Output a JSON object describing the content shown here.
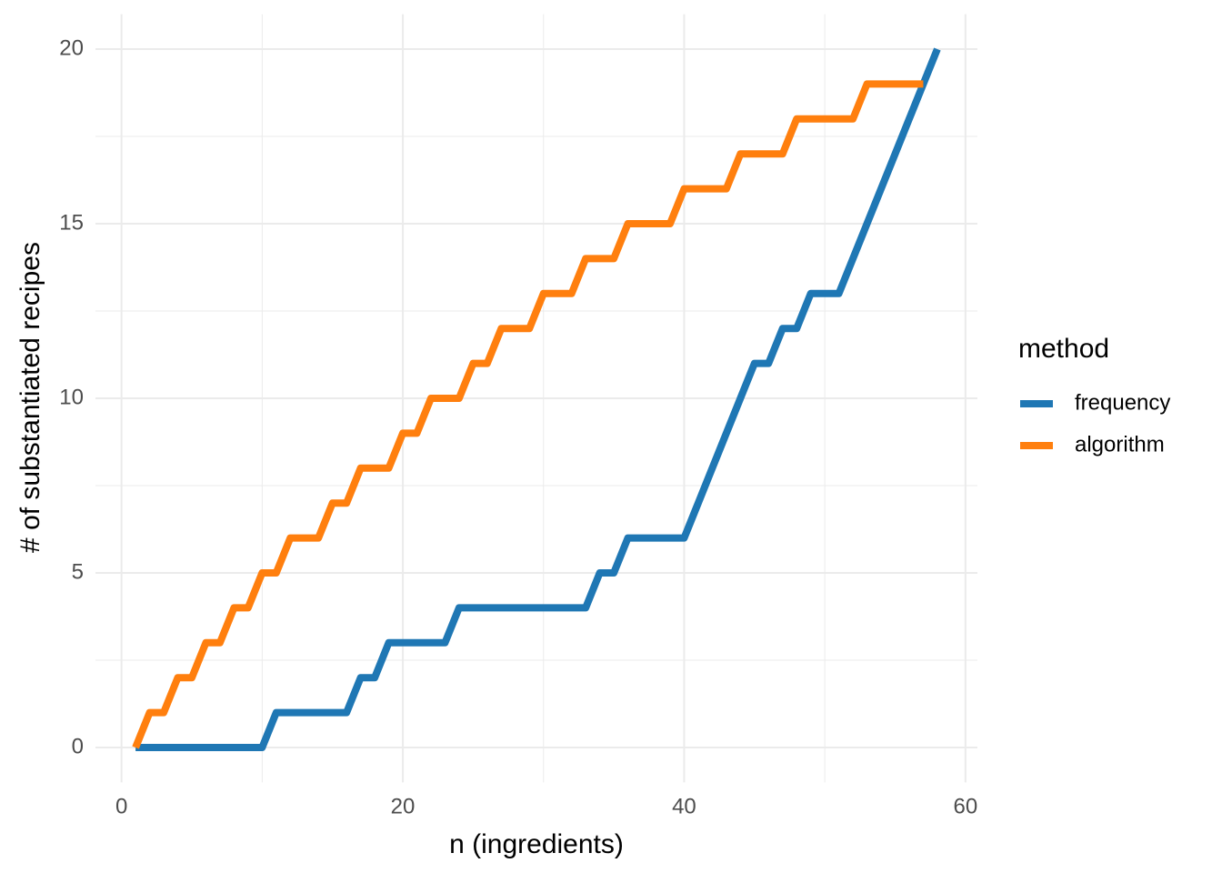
{
  "chart_data": {
    "type": "line",
    "x_label": "n (ingredients)",
    "y_label": "# of substantiated recipes",
    "legend_title": "method",
    "legend_position": "right",
    "grid": true,
    "xlim": [
      -1.85,
      60.85
    ],
    "ylim": [
      -1,
      21
    ],
    "xticks": [
      0,
      20,
      40,
      60
    ],
    "yticks": [
      0,
      5,
      10,
      15,
      20
    ],
    "x_minor_grid": [
      10,
      30,
      50
    ],
    "y_minor_grid": [
      2.5,
      7.5,
      12.5,
      17.5
    ],
    "series": [
      {
        "name": "frequency",
        "color": "#1f77b4",
        "x": [
          1,
          2,
          3,
          4,
          5,
          6,
          7,
          8,
          9,
          10,
          11,
          12,
          13,
          14,
          15,
          16,
          17,
          18,
          19,
          20,
          21,
          22,
          23,
          24,
          25,
          26,
          27,
          28,
          29,
          30,
          31,
          32,
          33,
          34,
          35,
          36,
          37,
          38,
          39,
          40,
          41,
          42,
          43,
          44,
          45,
          46,
          47,
          48,
          49,
          50,
          51,
          52,
          53,
          54,
          55,
          56,
          57,
          58
        ],
        "values": [
          0,
          0,
          0,
          0,
          0,
          0,
          0,
          0,
          0,
          0,
          1,
          1,
          1,
          1,
          1,
          1,
          2,
          2,
          3,
          3,
          3,
          3,
          3,
          4,
          4,
          4,
          4,
          4,
          4,
          4,
          4,
          4,
          4,
          5,
          5,
          6,
          6,
          6,
          6,
          6,
          7,
          8,
          9,
          10,
          11,
          11,
          12,
          12,
          13,
          13,
          13,
          14,
          15,
          16,
          17,
          18,
          19,
          20
        ]
      },
      {
        "name": "algorithm",
        "color": "#ff7f0e",
        "x": [
          1,
          2,
          3,
          4,
          5,
          6,
          7,
          8,
          9,
          10,
          11,
          12,
          13,
          14,
          15,
          16,
          17,
          18,
          19,
          20,
          21,
          22,
          23,
          24,
          25,
          26,
          27,
          28,
          29,
          30,
          31,
          32,
          33,
          34,
          35,
          36,
          37,
          38,
          39,
          40,
          41,
          42,
          43,
          44,
          45,
          46,
          47,
          48,
          49,
          50,
          51,
          52,
          53,
          54,
          55,
          56,
          57
        ],
        "values": [
          0,
          1,
          1,
          2,
          2,
          3,
          3,
          4,
          4,
          5,
          5,
          6,
          6,
          6,
          7,
          7,
          8,
          8,
          8,
          9,
          9,
          10,
          10,
          10,
          11,
          11,
          12,
          12,
          12,
          13,
          13,
          13,
          14,
          14,
          14,
          15,
          15,
          15,
          15,
          16,
          16,
          16,
          16,
          17,
          17,
          17,
          17,
          18,
          18,
          18,
          18,
          18,
          19,
          19,
          19,
          19,
          19
        ]
      }
    ]
  }
}
